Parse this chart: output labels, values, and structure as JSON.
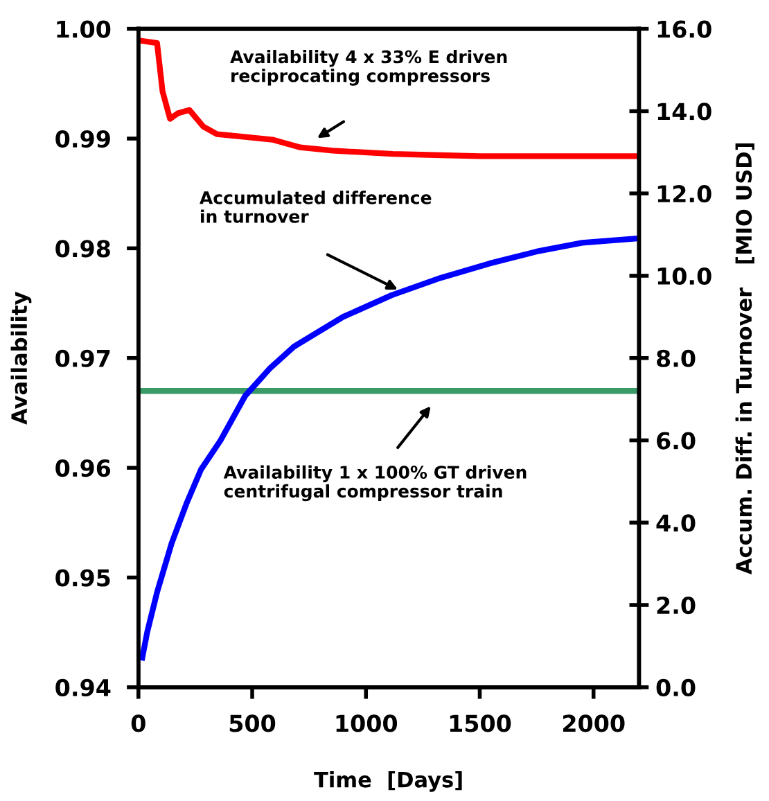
{
  "chart_data": {
    "type": "line",
    "xlabel": "Time  [Days]",
    "ylabel": "Availability",
    "y2label": "Accum. Diff. in Turnover   [MIO USD]",
    "xlim": [
      0,
      2200
    ],
    "xticks": [
      0,
      500,
      1000,
      1500,
      2000
    ],
    "ylim": [
      0.94,
      1.0
    ],
    "yticks": [
      {
        "value": 0.94,
        "label": "0.94"
      },
      {
        "value": 0.95,
        "label": "0.95"
      },
      {
        "value": 0.96,
        "label": "0.96"
      },
      {
        "value": 0.97,
        "label": "0.97"
      },
      {
        "value": 0.98,
        "label": "0.98"
      },
      {
        "value": 0.99,
        "label": "0.99"
      },
      {
        "value": 1.0,
        "label": "1.00"
      }
    ],
    "y2lim": [
      0,
      16
    ],
    "y2ticks": [
      {
        "value": 0,
        "label": "0.0"
      },
      {
        "value": 2,
        "label": "2.0"
      },
      {
        "value": 4,
        "label": "4.0"
      },
      {
        "value": 6,
        "label": "6.0"
      },
      {
        "value": 8,
        "label": "8.0"
      },
      {
        "value": 10,
        "label": "10.0"
      },
      {
        "value": 12,
        "label": "12.0"
      },
      {
        "value": 14,
        "label": "14.0"
      },
      {
        "value": 16,
        "label": "16.0"
      }
    ],
    "grid": false,
    "marker": "none",
    "line_style": "solid",
    "series": [
      {
        "color": "#ff0000",
        "x": [
          17,
          82,
          106,
          139,
          173,
          224,
          285,
          345,
          447,
          589,
          711,
          853,
          1117,
          1300,
          1500,
          1800,
          2180
        ],
        "values": [
          0.9989,
          0.9987,
          0.9943,
          0.9918,
          0.9923,
          0.9926,
          0.9911,
          0.9904,
          0.9902,
          0.9899,
          0.9892,
          0.9889,
          0.9886,
          0.9885,
          0.9884,
          0.9884,
          0.9884
        ]
      },
      {
        "color": "#3a9a68",
        "x": [
          17,
          2180
        ],
        "values": [
          0.967,
          0.967
        ]
      },
      {
        "color": "#0000ff",
        "axis": "y2",
        "x": [
          17,
          39,
          82,
          146,
          211,
          275,
          361,
          469,
          576,
          684,
          899,
          1114,
          1329,
          1544,
          1759,
          1950,
          2180
        ],
        "values": [
          0.72,
          1.35,
          2.31,
          3.5,
          4.46,
          5.29,
          6.0,
          7.08,
          7.74,
          8.28,
          9.0,
          9.53,
          9.95,
          10.3,
          10.6,
          10.8,
          10.9
        ]
      }
    ],
    "annotations": [
      "Availability 4 x 33% E driven\nreciprocating compressors",
      "Accumulated difference\nin turnover",
      "Availability 1 x 100% GT driven\ncentrifugal compressor train"
    ]
  }
}
